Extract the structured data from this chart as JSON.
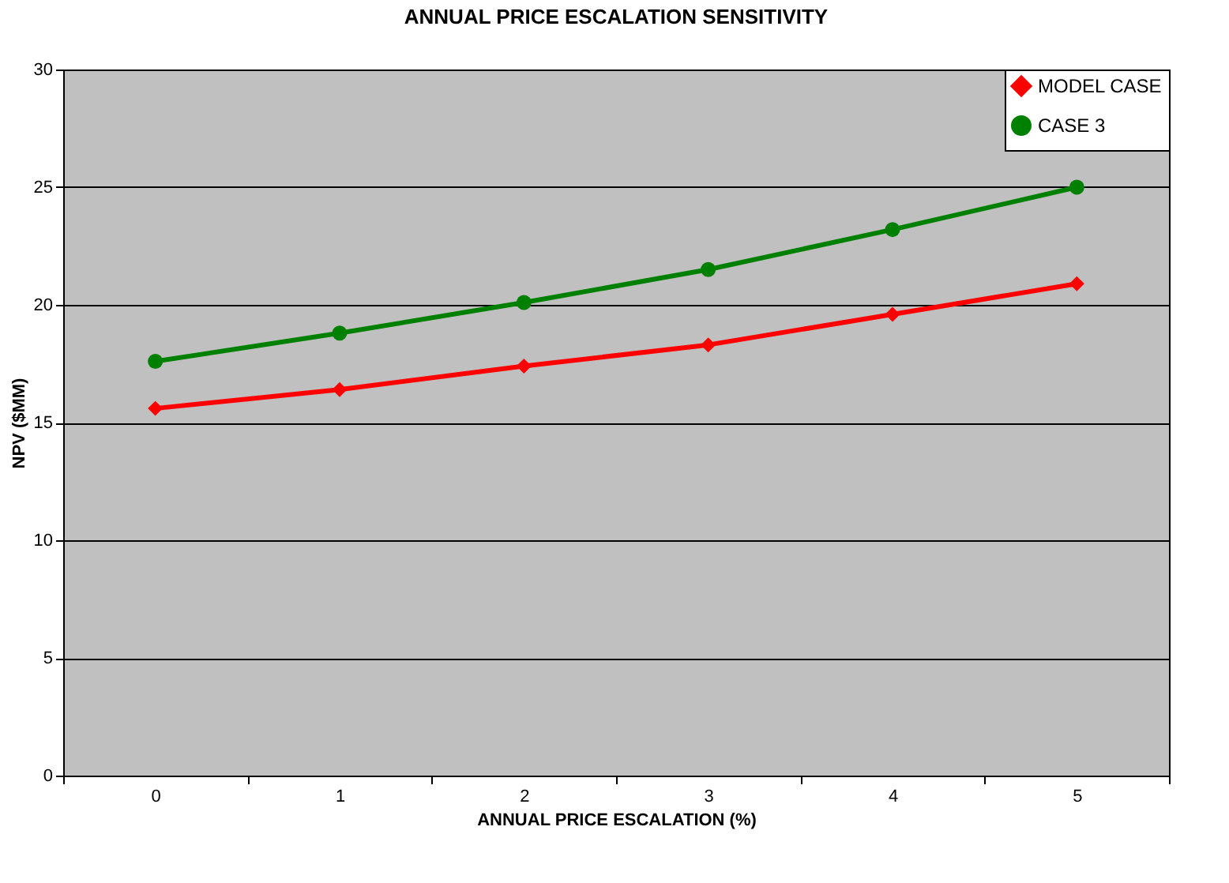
{
  "chart_data": {
    "type": "line",
    "title": "ANNUAL PRICE ESCALATION SENSITIVITY",
    "xlabel": "ANNUAL PRICE ESCALATION (%)",
    "ylabel": "NPV ($MM)",
    "categories": [
      "0",
      "1",
      "2",
      "3",
      "4",
      "5"
    ],
    "series": [
      {
        "name": "MODEL CASE",
        "color": "#ff0000",
        "marker": "diamond",
        "values": [
          15.6,
          16.4,
          17.4,
          18.3,
          19.6,
          20.9
        ]
      },
      {
        "name": "CASE 3",
        "color": "#008000",
        "marker": "circle",
        "values": [
          17.6,
          18.8,
          20.1,
          21.5,
          23.2,
          25.0
        ]
      }
    ],
    "ylim": [
      0,
      30
    ],
    "yticks": [
      0,
      5,
      10,
      15,
      20,
      25,
      30
    ],
    "grid": "y",
    "legend": "top right"
  }
}
